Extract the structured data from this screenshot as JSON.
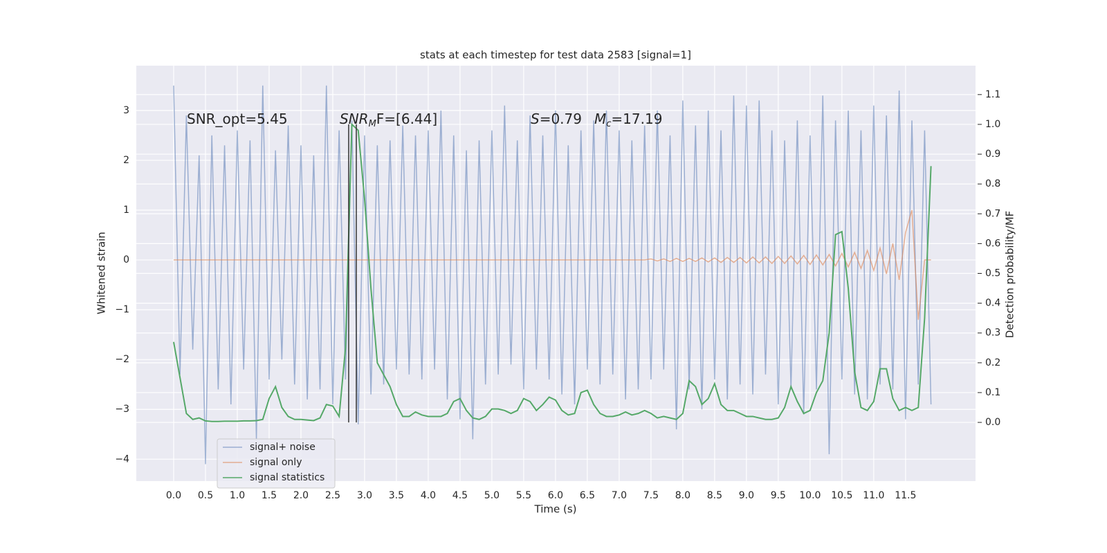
{
  "chart_data": {
    "type": "line",
    "title": "stats at each timestep for test data 2583 [signal=1]",
    "xlabel": "Time (s)",
    "ylabel": "Whitened strain",
    "y2label": "Detection probability/MF",
    "annotations": [
      {
        "text": "SNR_opt=5.45"
      },
      {
        "italic": "SNR",
        "sub": "M",
        "text": "F=[6.44]"
      },
      {
        "italic": "S",
        "text": "=0.79"
      },
      {
        "italic": "M",
        "sub": "c",
        "text": "=17.19"
      }
    ],
    "x": [
      0.0,
      0.1,
      0.2,
      0.3,
      0.4,
      0.5,
      0.6,
      0.7,
      0.8,
      0.9,
      1.0,
      1.1,
      1.2,
      1.3,
      1.4,
      1.5,
      1.6,
      1.7,
      1.8,
      1.9,
      2.0,
      2.1,
      2.2,
      2.3,
      2.4,
      2.5,
      2.6,
      2.7,
      2.8,
      2.9,
      3.0,
      3.1,
      3.2,
      3.3,
      3.4,
      3.5,
      3.6,
      3.7,
      3.8,
      3.9,
      4.0,
      4.1,
      4.2,
      4.3,
      4.4,
      4.5,
      4.6,
      4.7,
      4.8,
      4.9,
      5.0,
      5.1,
      5.2,
      5.3,
      5.4,
      5.5,
      5.6,
      5.7,
      5.8,
      5.9,
      6.0,
      6.1,
      6.2,
      6.3,
      6.4,
      6.5,
      6.6,
      6.7,
      6.8,
      6.9,
      7.0,
      7.1,
      7.2,
      7.3,
      7.4,
      7.5,
      7.6,
      7.7,
      7.8,
      7.9,
      8.0,
      8.1,
      8.2,
      8.3,
      8.4,
      8.5,
      8.6,
      8.7,
      8.8,
      8.9,
      9.0,
      9.1,
      9.2,
      9.3,
      9.4,
      9.5,
      9.6,
      9.7,
      9.8,
      9.9,
      10.0,
      10.1,
      10.2,
      10.3,
      10.4,
      10.5,
      10.6,
      10.7,
      10.8,
      10.9,
      11.0,
      11.1,
      11.2,
      11.3,
      11.4,
      11.5,
      11.6,
      11.7,
      11.8,
      11.9
    ],
    "series": [
      {
        "name": "signal+ noise",
        "color": "#4c72b0",
        "values": [
          3.5,
          -2.3,
          2.9,
          -1.8,
          2.1,
          -4.1,
          2.5,
          -2.6,
          2.3,
          -2.9,
          2.6,
          -2.2,
          2.4,
          -3.6,
          3.5,
          -2.4,
          2.2,
          -2.0,
          2.7,
          -2.5,
          2.3,
          -2.8,
          2.1,
          -2.6,
          3.5,
          -2.9,
          2.6,
          -2.4,
          2.8,
          -3.3,
          2.5,
          -2.7,
          2.3,
          -2.5,
          2.4,
          -2.2,
          2.7,
          -2.3,
          2.5,
          -2.4,
          2.6,
          -2.2,
          3.0,
          -2.8,
          2.5,
          -3.2,
          2.2,
          -3.6,
          2.4,
          -2.5,
          2.6,
          -2.3,
          3.1,
          -2.1,
          2.4,
          -2.6,
          2.9,
          -2.2,
          2.5,
          -2.4,
          3.0,
          -2.7,
          2.3,
          -2.9,
          2.6,
          -2.2,
          2.8,
          -2.5,
          3.0,
          -2.3,
          2.6,
          -2.8,
          2.4,
          -2.6,
          2.7,
          -2.4,
          3.0,
          -2.2,
          2.5,
          -3.4,
          3.2,
          -2.6,
          2.7,
          -3.0,
          3.0,
          -2.4,
          2.6,
          -2.8,
          3.3,
          -2.5,
          3.1,
          -2.7,
          3.2,
          -2.3,
          2.6,
          -2.9,
          2.4,
          -2.6,
          2.8,
          -3.1,
          2.5,
          -2.6,
          3.3,
          -3.9,
          2.8,
          -2.4,
          3.0,
          -2.7,
          2.6,
          -2.8,
          3.1,
          -2.5,
          2.9,
          -2.6,
          3.4,
          -3.2,
          2.8,
          -2.5,
          2.6,
          -2.9
        ]
      },
      {
        "name": "signal only",
        "color": "#dd8452",
        "values": [
          0,
          0,
          0,
          0,
          0,
          0,
          0,
          0,
          0,
          0,
          0,
          0,
          0,
          0,
          0,
          0,
          0,
          0,
          0,
          0,
          0,
          0,
          0,
          0,
          0,
          0,
          0,
          0,
          0,
          0,
          0,
          0,
          0,
          0,
          0,
          0,
          0,
          0,
          0,
          0,
          0,
          0,
          0,
          0,
          0,
          0,
          0,
          0,
          0,
          0,
          0,
          0,
          0,
          0,
          0,
          0,
          0,
          0,
          0,
          0,
          0,
          0,
          0,
          0,
          0,
          0,
          0,
          0,
          0,
          0,
          0,
          0,
          0,
          0,
          0,
          0.02,
          -0.02,
          0.02,
          -0.03,
          0.03,
          -0.03,
          0.03,
          -0.03,
          0.04,
          -0.04,
          0.04,
          -0.05,
          0.05,
          -0.05,
          0.05,
          -0.06,
          0.06,
          -0.06,
          0.06,
          -0.07,
          0.07,
          -0.07,
          0.08,
          -0.08,
          0.09,
          -0.09,
          0.1,
          -0.1,
          0.11,
          -0.12,
          0.13,
          -0.14,
          0.15,
          -0.17,
          0.19,
          -0.21,
          0.24,
          -0.28,
          0.33,
          -0.4,
          0.55,
          1.0,
          -1.2,
          0,
          0
        ]
      },
      {
        "name": "signal statistics",
        "color": "#55a868",
        "axis": "y2",
        "values": [
          0.27,
          0.15,
          0.03,
          0.01,
          0.015,
          0.005,
          0.003,
          0.003,
          0.004,
          0.004,
          0.004,
          0.005,
          0.005,
          0.006,
          0.01,
          0.08,
          0.12,
          0.05,
          0.02,
          0.01,
          0.01,
          0.008,
          0.006,
          0.015,
          0.06,
          0.055,
          0.02,
          0.25,
          1.0,
          0.98,
          0.75,
          0.45,
          0.2,
          0.16,
          0.12,
          0.06,
          0.02,
          0.02,
          0.035,
          0.025,
          0.02,
          0.02,
          0.02,
          0.03,
          0.07,
          0.08,
          0.04,
          0.015,
          0.01,
          0.02,
          0.045,
          0.045,
          0.04,
          0.03,
          0.04,
          0.08,
          0.07,
          0.04,
          0.06,
          0.085,
          0.075,
          0.04,
          0.025,
          0.03,
          0.1,
          0.108,
          0.06,
          0.03,
          0.02,
          0.02,
          0.025,
          0.035,
          0.025,
          0.03,
          0.04,
          0.03,
          0.015,
          0.02,
          0.015,
          0.01,
          0.03,
          0.14,
          0.12,
          0.06,
          0.08,
          0.13,
          0.06,
          0.04,
          0.04,
          0.03,
          0.02,
          0.02,
          0.015,
          0.01,
          0.01,
          0.015,
          0.05,
          0.12,
          0.07,
          0.03,
          0.04,
          0.1,
          0.14,
          0.3,
          0.63,
          0.64,
          0.45,
          0.17,
          0.05,
          0.04,
          0.07,
          0.18,
          0.18,
          0.08,
          0.04,
          0.05,
          0.04,
          0.05,
          0.35,
          0.86
        ]
      }
    ],
    "vlines": {
      "x": [
        2.75,
        2.87
      ],
      "ymin": 0,
      "ymax": 1,
      "axis": "y2",
      "color": "#333333"
    },
    "xlim": [
      -0.587,
      12.6
    ],
    "ylim": [
      -4.44,
      3.9
    ],
    "y2lim": [
      -0.197,
      1.197
    ],
    "xticks": [
      {
        "value": 0,
        "label": "0.0"
      },
      {
        "value": 0.5,
        "label": "0.5"
      },
      {
        "value": 1,
        "label": "1.0"
      },
      {
        "value": 1.5,
        "label": "1.5"
      },
      {
        "value": 2,
        "label": "2.0"
      },
      {
        "value": 2.5,
        "label": "2.5"
      },
      {
        "value": 3,
        "label": "3.0"
      },
      {
        "value": 3.5,
        "label": "3.5"
      },
      {
        "value": 4,
        "label": "4.0"
      },
      {
        "value": 4.5,
        "label": "4.5"
      },
      {
        "value": 5,
        "label": "5.0"
      },
      {
        "value": 5.5,
        "label": "5.5"
      },
      {
        "value": 6,
        "label": "6.0"
      },
      {
        "value": 6.5,
        "label": "6.5"
      },
      {
        "value": 7,
        "label": "7.0"
      },
      {
        "value": 7.5,
        "label": "7.5"
      },
      {
        "value": 8,
        "label": "8.0"
      },
      {
        "value": 8.5,
        "label": "8.5"
      },
      {
        "value": 9,
        "label": "9.0"
      },
      {
        "value": 9.5,
        "label": "9.5"
      },
      {
        "value": 10,
        "label": "10.0"
      },
      {
        "value": 10.5,
        "label": "10.5"
      },
      {
        "value": 11,
        "label": "11.0"
      },
      {
        "value": 11.5,
        "label": "11.5"
      }
    ],
    "yticks": [
      {
        "value": -4,
        "label": "−4"
      },
      {
        "value": -3,
        "label": "−3"
      },
      {
        "value": -2,
        "label": "−2"
      },
      {
        "value": -1,
        "label": "−1"
      },
      0,
      1,
      2,
      3
    ],
    "y2ticks": [
      {
        "value": 0,
        "label": "0.0"
      },
      {
        "value": 0.1,
        "label": "0.1"
      },
      {
        "value": 0.2,
        "label": "0.2"
      },
      {
        "value": 0.3,
        "label": "0.3"
      },
      {
        "value": 0.4,
        "label": "0.4"
      },
      {
        "value": 0.5,
        "label": "0.5"
      },
      {
        "value": 0.6,
        "label": "0.6"
      },
      {
        "value": 0.7,
        "label": "0.7"
      },
      {
        "value": 0.8,
        "label": "0.8"
      },
      {
        "value": 0.9,
        "label": "0.9"
      },
      {
        "value": 1,
        "label": "1.0"
      },
      {
        "value": 1.1,
        "label": "1.1"
      }
    ],
    "grid": true,
    "legend": "lower left"
  }
}
